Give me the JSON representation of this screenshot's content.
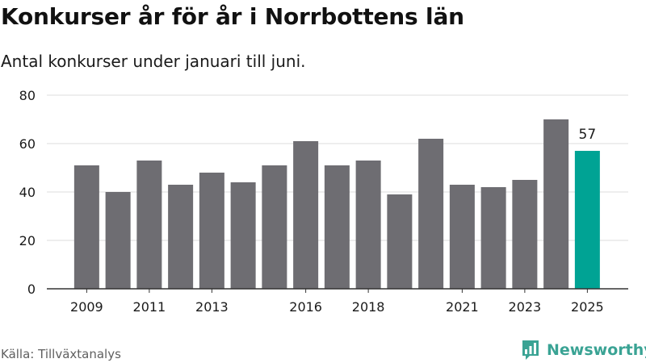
{
  "header": {
    "title": "Konkurser år för år i Norrbottens län",
    "subtitle": "Antal konkurser under januari till juni."
  },
  "footer": {
    "source": "Källa: Tillväxtanalys",
    "brand": "Newsworthy",
    "brand_icon": "newsworthy-logo-icon"
  },
  "colors": {
    "bar": "#6e6d72",
    "highlight": "#00a394",
    "grid": "#dcdcdc",
    "axis": "#333333",
    "text": "#1a1a1a",
    "brand": "#3aa394"
  },
  "chart_data": {
    "type": "bar",
    "title": "Konkurser år för år i Norrbottens län",
    "subtitle": "Antal konkurser under januari till juni.",
    "xlabel": "",
    "ylabel": "",
    "categories": [
      "2009",
      "2010",
      "2011",
      "2012",
      "2013",
      "2014",
      "2015",
      "2016",
      "2017",
      "2018",
      "2019",
      "2020",
      "2021",
      "2022",
      "2023",
      "2024",
      "2025"
    ],
    "values": [
      51,
      40,
      53,
      43,
      48,
      44,
      51,
      61,
      51,
      53,
      39,
      62,
      43,
      42,
      45,
      70,
      57
    ],
    "x_tick_labels": [
      "2009",
      "2011",
      "2013",
      "2016",
      "2018",
      "2021",
      "2023",
      "2025"
    ],
    "ylim": [
      0,
      80
    ],
    "y_ticks": [
      0,
      20,
      40,
      60,
      80
    ],
    "grid": true,
    "legend": "none",
    "highlight": {
      "category": "2025",
      "label": "57"
    }
  }
}
